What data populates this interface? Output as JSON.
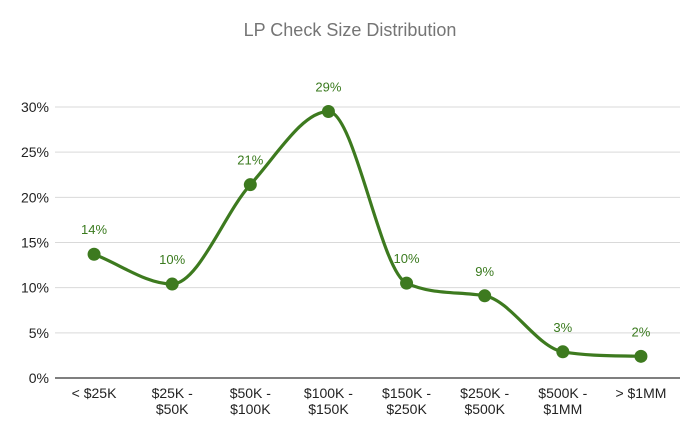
{
  "chart_data": {
    "type": "line",
    "title": "LP Check Size Distribution",
    "xlabel": "",
    "ylabel": "",
    "categories": [
      [
        "< $25K"
      ],
      [
        "$25K -",
        "$50K"
      ],
      [
        "$50K -",
        "$100K"
      ],
      [
        "$100K -",
        "$150K"
      ],
      [
        "$150K -",
        "$250K"
      ],
      [
        "$250K -",
        "$500K"
      ],
      [
        "$500K -",
        "$1MM"
      ],
      [
        "> $1MM"
      ]
    ],
    "series": [
      {
        "values": [
          13.7,
          10.4,
          21.4,
          29.5,
          10.5,
          9.1,
          2.9,
          2.4
        ],
        "labels": [
          "14%",
          "10%",
          "21%",
          "29%",
          "10%",
          "9%",
          "3%",
          "2%"
        ]
      }
    ],
    "ylim": [
      0,
      30
    ],
    "yticks": [
      0,
      5,
      10,
      15,
      20,
      25,
      30
    ],
    "ytick_labels": [
      "0%",
      "5%",
      "10%",
      "15%",
      "20%",
      "25%",
      "30%"
    ],
    "grid": true,
    "smooth": true,
    "legend": "none",
    "colors": {
      "line": "#3d7a1f",
      "grid": "#d9d9d9",
      "axis": "#333333",
      "title": "#757575"
    }
  }
}
